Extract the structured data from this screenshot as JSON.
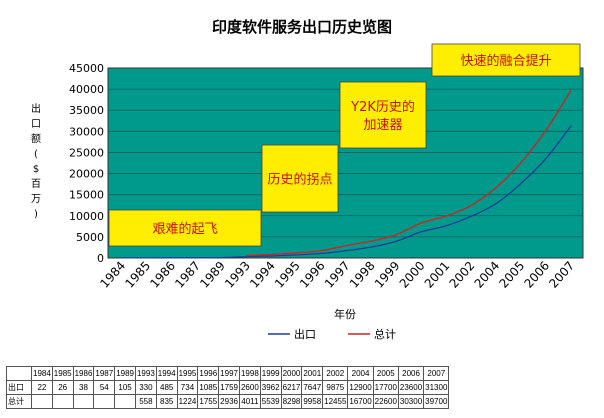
{
  "chart_data": {
    "type": "line",
    "title": "印度软件服务出口历史览图",
    "xlabel": "年份",
    "ylabel_lines": [
      "出",
      "口",
      "额",
      "(",
      "$",
      "百",
      "万",
      ")"
    ],
    "categories": [
      "1984",
      "1985",
      "1986",
      "1987",
      "1989",
      "1993",
      "1994",
      "1995",
      "1996",
      "1997",
      "1998",
      "1999",
      "2000",
      "2001",
      "2002",
      "2004",
      "2005",
      "2006",
      "2007"
    ],
    "ylim": [
      0,
      45000
    ],
    "yticks": [
      "0",
      "5000",
      "10000",
      "15000",
      "20000",
      "25000",
      "30000",
      "35000",
      "40000",
      "45000"
    ],
    "grid": true,
    "legend_position": "bottom",
    "series": [
      {
        "name": "出口",
        "color": "#1f3a9a",
        "values": [
          22,
          26,
          38,
          54,
          105,
          330,
          485,
          734,
          1085,
          1759,
          2600,
          3962,
          6217,
          7647,
          9875,
          12900,
          17700,
          23600,
          31300
        ]
      },
      {
        "name": "总计",
        "color": "#d42020",
        "values": [
          null,
          null,
          null,
          null,
          null,
          558,
          835,
          1224,
          1755,
          2936,
          4011,
          5539,
          8298,
          9958,
          12455,
          16700,
          22600,
          30300,
          39700
        ]
      }
    ],
    "annotations": [
      {
        "text": "艰难的起飞"
      },
      {
        "text": "历史的拐点"
      },
      {
        "text_lines": [
          "Y2K历史的",
          "加速器"
        ]
      },
      {
        "text": "快速的融合提升"
      }
    ],
    "plot_background": "#009a8c",
    "annotation_fill": "#ffee00"
  },
  "table": {
    "row_labels": [
      "出口",
      "总计"
    ]
  }
}
